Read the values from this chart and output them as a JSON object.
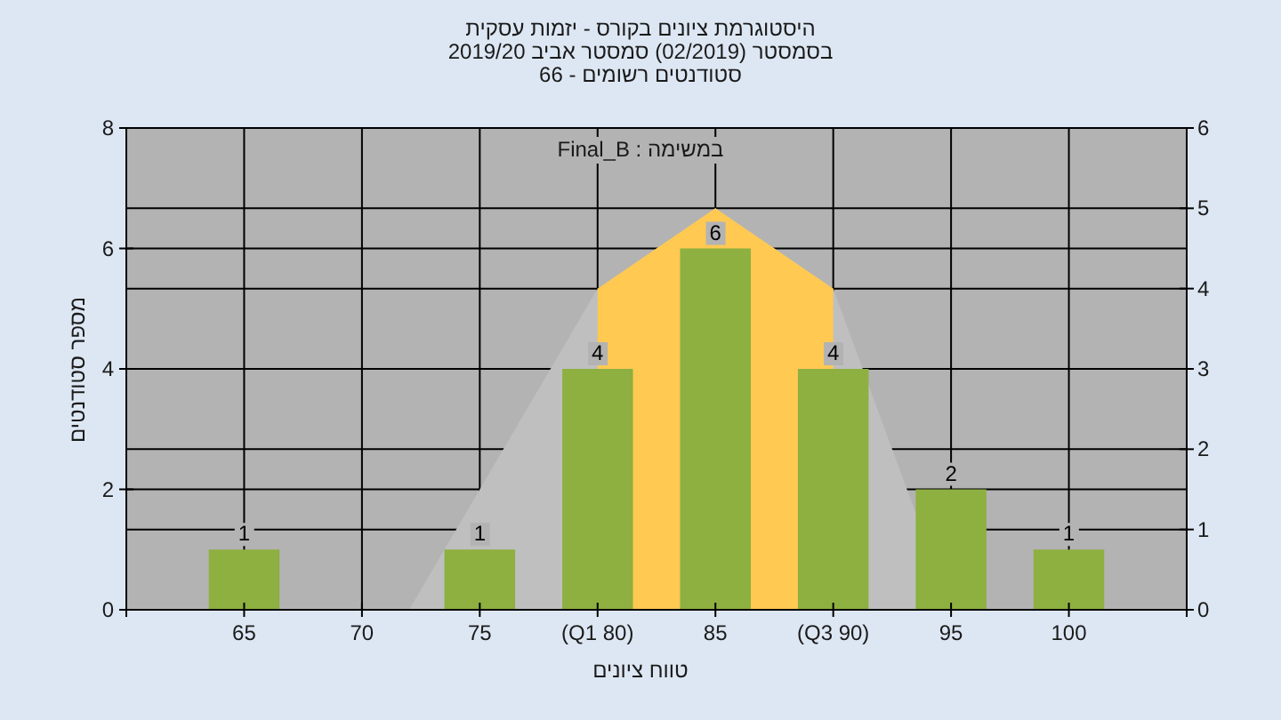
{
  "chart_data": {
    "type": "bar",
    "title": "היסטוגרמת ציונים בקורס - יזמות עסקית",
    "subtitle": "בסמסטר  (02/2019)  סמסטר אביב 2019/20",
    "annotations": [
      "סטודנטים רשומים - 66",
      "במשימה : Final_B"
    ],
    "xlabel": "טווח ציונים",
    "ylabel": "מספר סטודנטים",
    "xlim": [
      60,
      105
    ],
    "xticks": [
      {
        "value": 60,
        "label": null
      },
      65,
      70,
      75,
      {
        "value": 80,
        "label": "(Q1 80)"
      },
      85,
      {
        "value": 90,
        "label": "(Q3 90)"
      },
      95,
      100,
      {
        "value": 105,
        "label": null
      }
    ],
    "ylim": [
      0,
      8
    ],
    "yticks": [
      0,
      2,
      4,
      6,
      8
    ],
    "y2lim": [
      0,
      6
    ],
    "y2ticks": [
      0,
      1,
      2,
      3,
      4,
      5,
      6
    ],
    "grid": true,
    "series": [
      {
        "type": "area",
        "axis": "y2",
        "color": "#bfbfbf",
        "x": [
          72,
          80,
          85,
          90,
          95
        ],
        "values": [
          0,
          4,
          5,
          4,
          0
        ]
      },
      {
        "type": "area",
        "axis": "y2",
        "color": "#ffc952",
        "x": [
          80,
          80,
          85,
          90,
          90
        ],
        "values": [
          0,
          4,
          5,
          4,
          0
        ]
      },
      {
        "type": "bar",
        "color": "#8db040",
        "x": [
          65,
          70,
          75,
          80,
          85,
          90,
          95,
          100
        ],
        "values": [
          1,
          0,
          1,
          4,
          6,
          4,
          2,
          1
        ],
        "value_labels": [
          "1",
          null,
          "1",
          "4",
          "6",
          "4",
          "2",
          "1"
        ]
      }
    ]
  }
}
